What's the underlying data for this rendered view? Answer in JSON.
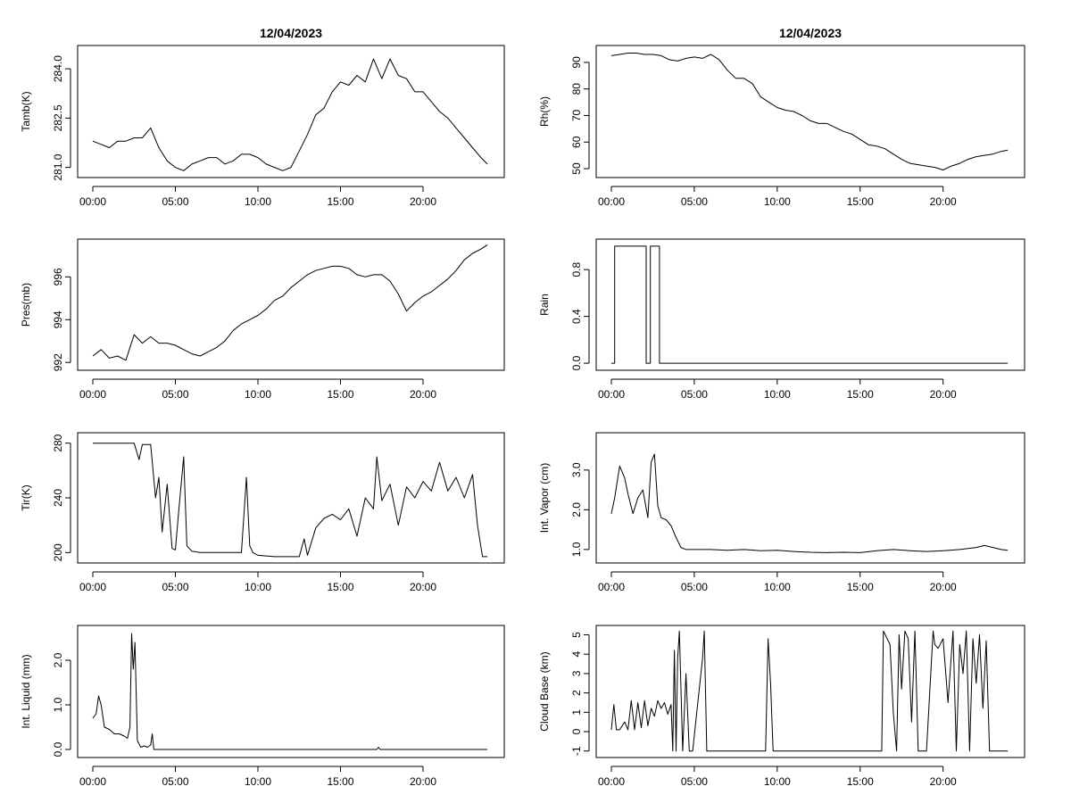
{
  "page": {
    "date": "12/04/2023"
  },
  "chart_data": [
    {
      "id": "tamb",
      "type": "line",
      "title": "12/04/2023",
      "xlabel": "",
      "ylabel": "Tamb(K)",
      "xlim": [
        0,
        24
      ],
      "ylim": [
        280.8,
        284.6
      ],
      "yticks": [
        281.0,
        282.5,
        284.0
      ],
      "ytick_labels": [
        "281.0",
        "282.5",
        "284.0"
      ],
      "xticks": [
        0,
        5,
        10,
        15,
        20
      ],
      "xtick_labels": [
        "00:00",
        "05:00",
        "10:00",
        "15:00",
        "20:00"
      ],
      "x": [
        0,
        0.5,
        1,
        1.5,
        2,
        2.5,
        3,
        3.5,
        4,
        4.5,
        5,
        5.5,
        6,
        6.5,
        7,
        7.5,
        8,
        8.5,
        9,
        9.5,
        10,
        10.5,
        11,
        11.5,
        12,
        12.5,
        13,
        13.5,
        14,
        14.5,
        15,
        15.5,
        16,
        16.5,
        17,
        17.5,
        18,
        18.5,
        19,
        19.5,
        20,
        20.5,
        21,
        21.5,
        22,
        22.5,
        23,
        23.5,
        23.9
      ],
      "values": [
        281.8,
        281.7,
        281.6,
        281.8,
        281.8,
        281.9,
        281.9,
        282.2,
        281.6,
        281.2,
        281.0,
        280.9,
        281.1,
        281.2,
        281.3,
        281.3,
        281.1,
        281.2,
        281.4,
        281.4,
        281.3,
        281.1,
        281.0,
        280.9,
        281.0,
        281.5,
        282.0,
        282.6,
        282.8,
        283.3,
        283.6,
        283.5,
        283.8,
        283.6,
        284.3,
        283.7,
        284.3,
        283.8,
        283.7,
        283.3,
        283.3,
        283.0,
        282.7,
        282.5,
        282.2,
        281.9,
        281.6,
        281.3,
        281.1
      ]
    },
    {
      "id": "rh",
      "type": "line",
      "title": "12/04/2023",
      "xlabel": "",
      "ylabel": "Rh(%)",
      "xlim": [
        0,
        24
      ],
      "ylim": [
        48,
        95
      ],
      "yticks": [
        50,
        60,
        70,
        80,
        90
      ],
      "ytick_labels": [
        "50",
        "60",
        "70",
        "80",
        "90"
      ],
      "xticks": [
        0,
        5,
        10,
        15,
        20
      ],
      "xtick_labels": [
        "00:00",
        "05:00",
        "10:00",
        "15:00",
        "20:00"
      ],
      "x": [
        0,
        0.5,
        1,
        1.5,
        2,
        2.5,
        3,
        3.5,
        4,
        4.5,
        5,
        5.5,
        6,
        6.5,
        7,
        7.5,
        8,
        8.5,
        9,
        9.5,
        10,
        10.5,
        11,
        11.5,
        12,
        12.5,
        13,
        13.5,
        14,
        14.5,
        15,
        15.5,
        16,
        16.5,
        17,
        17.5,
        18,
        18.5,
        19,
        19.5,
        20,
        20.5,
        21,
        21.5,
        22,
        22.5,
        23,
        23.5,
        23.9
      ],
      "values": [
        92.5,
        93,
        93.5,
        93.5,
        93,
        93,
        92.5,
        91,
        90.5,
        91.5,
        92,
        91.5,
        93,
        91,
        87,
        84,
        84,
        82,
        77,
        75,
        73,
        72,
        71.5,
        70,
        68,
        67,
        67,
        65.5,
        64,
        63,
        61,
        59,
        58.5,
        57.5,
        55.5,
        53.5,
        52,
        51.5,
        51,
        50.5,
        49.5,
        51,
        52,
        53.5,
        54.5,
        55,
        55.5,
        56.5,
        57
      ]
    },
    {
      "id": "pres",
      "type": "line",
      "title": "",
      "xlabel": "",
      "ylabel": "Pres(mb)",
      "xlim": [
        0,
        24
      ],
      "ylim": [
        991.8,
        997.6
      ],
      "yticks": [
        992,
        994,
        996
      ],
      "ytick_labels": [
        "992",
        "994",
        "996"
      ],
      "xticks": [
        0,
        5,
        10,
        15,
        20
      ],
      "xtick_labels": [
        "00:00",
        "05:00",
        "10:00",
        "15:00",
        "20:00"
      ],
      "x": [
        0,
        0.5,
        1,
        1.5,
        2,
        2.5,
        3,
        3.5,
        4,
        4.5,
        5,
        5.5,
        6,
        6.5,
        7,
        7.5,
        8,
        8.5,
        9,
        9.5,
        10,
        10.5,
        11,
        11.5,
        12,
        12.5,
        13,
        13.5,
        14,
        14.5,
        15,
        15.5,
        16,
        16.5,
        17,
        17.5,
        18,
        18.5,
        19,
        19.5,
        20,
        20.5,
        21,
        21.5,
        22,
        22.5,
        23,
        23.5,
        23.9
      ],
      "values": [
        992.3,
        992.6,
        992.2,
        992.3,
        992.1,
        993.3,
        992.9,
        993.2,
        992.9,
        992.9,
        992.8,
        992.6,
        992.4,
        992.3,
        992.5,
        992.7,
        993.0,
        993.5,
        993.8,
        994.0,
        994.2,
        994.5,
        994.9,
        995.1,
        995.5,
        995.8,
        996.1,
        996.3,
        996.4,
        996.5,
        996.5,
        996.4,
        996.1,
        996.0,
        996.1,
        996.1,
        995.8,
        995.2,
        994.4,
        994.8,
        995.1,
        995.3,
        995.6,
        995.9,
        996.3,
        996.8,
        997.1,
        997.3,
        997.5
      ]
    },
    {
      "id": "rain",
      "type": "line",
      "title": "",
      "xlabel": "",
      "ylabel": "Rain",
      "xlim": [
        0,
        24
      ],
      "ylim": [
        -0.03,
        1.03
      ],
      "yticks": [
        0.0,
        0.4,
        0.8
      ],
      "ytick_labels": [
        "0.0",
        "0.4",
        "0.8"
      ],
      "xticks": [
        0,
        5,
        10,
        15,
        20
      ],
      "xtick_labels": [
        "00:00",
        "05:00",
        "10:00",
        "15:00",
        "20:00"
      ],
      "x": [
        0,
        0.2,
        0.2,
        2.1,
        2.1,
        2.35,
        2.35,
        2.9,
        2.9,
        23.9
      ],
      "values": [
        0,
        0,
        1,
        1,
        0,
        0,
        1,
        1,
        0,
        0
      ]
    },
    {
      "id": "tir",
      "type": "line",
      "title": "",
      "xlabel": "",
      "ylabel": "Tir(K)",
      "xlim": [
        0,
        24
      ],
      "ylim": [
        195,
        285
      ],
      "yticks": [
        200,
        240,
        280
      ],
      "ytick_labels": [
        "200",
        "240",
        "280"
      ],
      "xticks": [
        0,
        5,
        10,
        15,
        20
      ],
      "xtick_labels": [
        "00:00",
        "05:00",
        "10:00",
        "15:00",
        "20:00"
      ],
      "x": [
        0,
        0.5,
        1,
        1.5,
        2,
        2.5,
        2.8,
        3,
        3.5,
        3.8,
        4,
        4.2,
        4.5,
        4.8,
        5,
        5.2,
        5.5,
        5.7,
        6,
        6.5,
        7,
        8,
        9,
        9.3,
        9.5,
        9.7,
        10,
        11,
        12,
        12.5,
        12.8,
        13,
        13.5,
        14,
        14.5,
        15,
        15.5,
        16,
        16.5,
        17,
        17.2,
        17.5,
        18,
        18.5,
        19,
        19.5,
        20,
        20.5,
        21,
        21.5,
        22,
        22.5,
        23,
        23.3,
        23.6,
        23.9
      ],
      "values": [
        280,
        280,
        280,
        280,
        280,
        280,
        268,
        279,
        279,
        240,
        255,
        215,
        250,
        203,
        202,
        230,
        270,
        205,
        201,
        200,
        200,
        200,
        200,
        255,
        205,
        200,
        198,
        197,
        197,
        197,
        210,
        198,
        218,
        225,
        228,
        224,
        232,
        212,
        240,
        232,
        270,
        238,
        250,
        220,
        248,
        240,
        252,
        245,
        266,
        245,
        255,
        240,
        257,
        220,
        197,
        197
      ]
    },
    {
      "id": "vapor",
      "type": "line",
      "title": "",
      "xlabel": "",
      "ylabel": "Int. Vapor (cm)",
      "xlim": [
        0,
        24
      ],
      "ylim": [
        0.75,
        3.85
      ],
      "yticks": [
        1.0,
        2.0,
        3.0
      ],
      "ytick_labels": [
        "1.0",
        "2.0",
        "3.0"
      ],
      "xticks": [
        0,
        5,
        10,
        15,
        20
      ],
      "xtick_labels": [
        "00:00",
        "05:00",
        "10:00",
        "15:00",
        "20:00"
      ],
      "x": [
        0,
        0.2,
        0.5,
        0.8,
        1,
        1.3,
        1.6,
        1.9,
        2.2,
        2.4,
        2.6,
        2.8,
        3,
        3.3,
        3.6,
        3.9,
        4.2,
        4.5,
        5,
        6,
        7,
        8,
        9,
        10,
        11,
        12,
        13,
        14,
        15,
        16,
        17,
        18,
        19,
        20,
        21,
        22,
        22.5,
        23,
        23.5,
        23.9
      ],
      "values": [
        1.9,
        2.3,
        3.1,
        2.8,
        2.4,
        1.9,
        2.3,
        2.5,
        1.8,
        3.2,
        3.4,
        2.1,
        1.8,
        1.75,
        1.6,
        1.3,
        1.05,
        1.0,
        1.0,
        1.0,
        0.98,
        1.0,
        0.97,
        0.98,
        0.95,
        0.93,
        0.92,
        0.93,
        0.92,
        0.97,
        1.0,
        0.97,
        0.95,
        0.97,
        1.0,
        1.05,
        1.1,
        1.05,
        1.0,
        0.98
      ]
    },
    {
      "id": "liquid",
      "type": "line",
      "title": "",
      "xlabel": "",
      "ylabel": "Int. Liquid (mm)",
      "xlim": [
        0,
        24
      ],
      "ylim": [
        -0.1,
        2.7
      ],
      "yticks": [
        0.0,
        1.0,
        2.0
      ],
      "ytick_labels": [
        "0.0",
        "1.0",
        "2.0"
      ],
      "xticks": [
        0,
        5,
        10,
        15,
        20
      ],
      "xtick_labels": [
        "00:00",
        "05:00",
        "10:00",
        "15:00",
        "20:00"
      ],
      "x": [
        0,
        0.2,
        0.35,
        0.5,
        0.7,
        1,
        1.3,
        1.6,
        1.9,
        2.1,
        2.25,
        2.35,
        2.45,
        2.55,
        2.7,
        2.9,
        3.1,
        3.3,
        3.5,
        3.6,
        3.7,
        3.9,
        5,
        10,
        15,
        17.2,
        17.3,
        17.4,
        20,
        23.9
      ],
      "values": [
        0.7,
        0.8,
        1.2,
        1.0,
        0.5,
        0.45,
        0.35,
        0.35,
        0.3,
        0.25,
        0.5,
        2.6,
        1.8,
        2.4,
        0.2,
        0.05,
        0.08,
        0.05,
        0.1,
        0.35,
        0.0,
        0.0,
        0.0,
        0.0,
        0.0,
        0.0,
        0.05,
        0.0,
        0.0,
        0.0
      ]
    },
    {
      "id": "cloudbase",
      "type": "line",
      "title": "",
      "xlabel": "",
      "ylabel": "Cloud Base (km)",
      "xlim": [
        0,
        24
      ],
      "ylim": [
        -1.15,
        5.3
      ],
      "yticks": [
        -1,
        0,
        1,
        2,
        3,
        4,
        5
      ],
      "ytick_labels": [
        "-1",
        "0",
        "1",
        "2",
        "3",
        "4",
        "5"
      ],
      "xticks": [
        0,
        5,
        10,
        15,
        20
      ],
      "xtick_labels": [
        "00:00",
        "05:00",
        "10:00",
        "15:00",
        "20:00"
      ],
      "x": [
        0,
        0.15,
        0.3,
        0.5,
        0.8,
        1,
        1.2,
        1.4,
        1.6,
        1.8,
        2,
        2.2,
        2.4,
        2.6,
        2.8,
        3,
        3.2,
        3.4,
        3.6,
        3.7,
        3.8,
        3.9,
        4.0,
        4.1,
        4.3,
        4.5,
        4.7,
        4.9,
        5.5,
        5.6,
        5.75,
        5.9,
        9.3,
        9.45,
        9.6,
        9.75,
        16.3,
        16.4,
        16.8,
        17.0,
        17.2,
        17.35,
        17.5,
        17.7,
        17.9,
        18.1,
        18.3,
        18.5,
        19.0,
        19.4,
        19.5,
        19.7,
        20.0,
        20.3,
        20.6,
        20.8,
        21.0,
        21.2,
        21.4,
        21.6,
        21.8,
        22.0,
        22.2,
        22.4,
        22.6,
        22.8,
        23.9
      ],
      "values": [
        0.1,
        1.4,
        0.1,
        0.1,
        0.5,
        0.1,
        1.6,
        0.1,
        1.5,
        0.2,
        1.6,
        0.3,
        1.2,
        0.8,
        1.6,
        1.2,
        1.5,
        0.9,
        1.4,
        -1,
        4.2,
        -1,
        3.8,
        5.2,
        -1,
        3.0,
        -1,
        -1,
        3.8,
        5.2,
        -1,
        -1,
        -1,
        4.8,
        2.5,
        -1,
        -1,
        5.2,
        4.5,
        1.0,
        -1,
        5.0,
        2.2,
        5.2,
        4.8,
        0.5,
        5.2,
        -1,
        -1,
        5.2,
        4.5,
        4.3,
        4.8,
        1.5,
        5.2,
        -1,
        4.5,
        3.0,
        5.2,
        -1,
        4.8,
        2.5,
        5.0,
        1.2,
        4.7,
        -1,
        -1
      ]
    }
  ]
}
